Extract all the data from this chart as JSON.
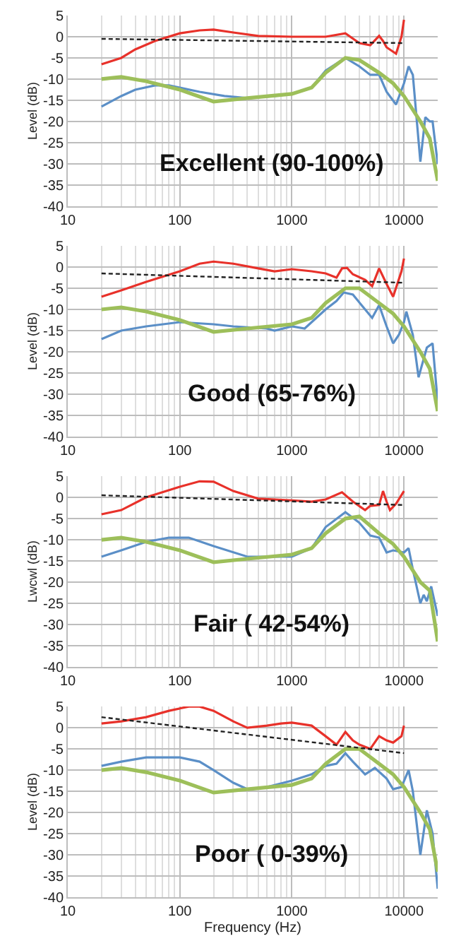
{
  "chart_data": [
    {
      "type": "line",
      "ylabel": "Level (dB)",
      "xlim": [
        10,
        20000
      ],
      "xticks": [
        10,
        100,
        1000,
        10000
      ],
      "ylim": [
        -40,
        5
      ],
      "yticks": [
        -40,
        -35,
        -30,
        -25,
        -20,
        -15,
        -10,
        -5,
        0,
        5
      ],
      "log": "x",
      "grid": true,
      "annotations": [
        "Excellent (90-100%)"
      ],
      "series": [
        {
          "color": "#5b8fc7",
          "x": [
            20,
            30,
            40,
            60,
            80,
            150,
            250,
            400,
            700,
            1000,
            1500,
            2000,
            3000,
            4000,
            5000,
            6000,
            7000,
            8500,
            10000,
            11000,
            12000,
            14000,
            15500,
            17000,
            18000,
            20000
          ],
          "values": [
            -16.5,
            -14,
            -12.5,
            -11.5,
            -11.5,
            -13,
            -14,
            -14.5,
            -14,
            -13.5,
            -12,
            -8,
            -5,
            -7,
            -9,
            -9,
            -13,
            -16,
            -11,
            -7,
            -9,
            -29.5,
            -19,
            -20,
            -20,
            -30
          ]
        },
        {
          "color": "#9dbf5a",
          "x": [
            20,
            30,
            50,
            100,
            200,
            400,
            1000,
            1500,
            2000,
            3000,
            4000,
            6000,
            8000,
            10000,
            14000,
            17000,
            20000
          ],
          "values": [
            -10,
            -9.5,
            -10.5,
            -12.5,
            -15.3,
            -14.5,
            -13.5,
            -12,
            -8.5,
            -5,
            -5.5,
            -8.5,
            -11,
            -14,
            -20,
            -24,
            -34
          ]
        },
        {
          "color": "#e8312a",
          "x": [
            20,
            30,
            40,
            60,
            100,
            150,
            200,
            300,
            500,
            1000,
            2000,
            3000,
            4000,
            5000,
            6000,
            6500,
            7000,
            8500,
            9500,
            10000
          ],
          "values": [
            -6.5,
            -5,
            -3,
            -1,
            0.8,
            1.5,
            1.7,
            1,
            0.2,
            0,
            0,
            0.8,
            -1.5,
            -2,
            0.2,
            -1,
            -2.5,
            -4,
            0,
            4
          ]
        },
        {
          "color": "#222222",
          "line_style": "dashed",
          "x": [
            20,
            10000
          ],
          "values": [
            -0.5,
            -1.5
          ]
        }
      ]
    },
    {
      "type": "line",
      "ylabel": "Level (dB)",
      "xlim": [
        10,
        20000
      ],
      "xticks": [
        10,
        100,
        1000,
        10000
      ],
      "ylim": [
        -40,
        5
      ],
      "yticks": [
        -40,
        -35,
        -30,
        -25,
        -20,
        -15,
        -10,
        -5,
        0,
        5
      ],
      "log": "x",
      "grid": true,
      "annotations": [
        "Good (65-76%)"
      ],
      "series": [
        {
          "color": "#5b8fc7",
          "x": [
            20,
            30,
            50,
            100,
            200,
            300,
            600,
            700,
            1000,
            1300,
            2000,
            2500,
            2900,
            3500,
            4500,
            5200,
            6000,
            7000,
            8000,
            9000,
            10000,
            10500,
            12000,
            13500,
            16000,
            18000,
            20000
          ],
          "values": [
            -17,
            -15,
            -14,
            -13,
            -13.5,
            -14,
            -14.5,
            -15,
            -14,
            -14.5,
            -10,
            -8,
            -6,
            -6.5,
            -10,
            -12,
            -9,
            -14,
            -18,
            -16,
            -13,
            -10.5,
            -16,
            -26,
            -19,
            -18,
            -32
          ]
        },
        {
          "color": "#9dbf5a",
          "x": [
            20,
            30,
            50,
            100,
            200,
            400,
            1000,
            1500,
            2000,
            3000,
            4000,
            6000,
            8000,
            10000,
            14000,
            17000,
            20000
          ],
          "values": [
            -10,
            -9.5,
            -10.5,
            -12.5,
            -15.3,
            -14.5,
            -13.5,
            -12,
            -8.5,
            -5,
            -5,
            -8.5,
            -11,
            -14,
            -20,
            -24,
            -34
          ]
        },
        {
          "color": "#e8312a",
          "x": [
            20,
            30,
            50,
            100,
            150,
            200,
            300,
            500,
            700,
            1000,
            1500,
            2000,
            2500,
            2800,
            3100,
            3500,
            4500,
            5200,
            6000,
            7000,
            8000,
            9500,
            10000
          ],
          "values": [
            -7,
            -5.5,
            -3.5,
            -1,
            0.8,
            1.3,
            0.8,
            -0.3,
            -1,
            -0.5,
            -1,
            -1.5,
            -2.5,
            -0.3,
            -0.2,
            -1.7,
            -3,
            -4.5,
            -0.3,
            -4,
            -7,
            -1,
            2
          ]
        },
        {
          "color": "#222222",
          "line_style": "dashed",
          "x": [
            20,
            10000
          ],
          "values": [
            -1.5,
            -3.7
          ]
        }
      ]
    },
    {
      "type": "line",
      "ylabel": "Lwcwl (dB)",
      "xlim": [
        10,
        20000
      ],
      "xticks": [
        10,
        100,
        1000,
        10000
      ],
      "ylim": [
        -40,
        5
      ],
      "yticks": [
        -40,
        -35,
        -30,
        -25,
        -20,
        -15,
        -10,
        -5,
        0,
        5
      ],
      "log": "x",
      "grid": true,
      "annotations": [
        "Fair ( 42-54%)"
      ],
      "series": [
        {
          "color": "#5b8fc7",
          "x": [
            20,
            30,
            50,
            80,
            120,
            200,
            400,
            700,
            1000,
            1500,
            2000,
            3000,
            4000,
            5000,
            6000,
            7000,
            8000,
            10000,
            11000,
            12000,
            14000,
            15000,
            16000,
            17500,
            20000
          ],
          "values": [
            -14,
            -12.5,
            -10.5,
            -9.5,
            -9.5,
            -11.5,
            -14,
            -14,
            -14,
            -12,
            -7,
            -3.5,
            -6,
            -9,
            -9.5,
            -13,
            -12.5,
            -13,
            -12,
            -17,
            -25,
            -23,
            -24.5,
            -21,
            -28
          ]
        },
        {
          "color": "#9dbf5a",
          "x": [
            20,
            30,
            50,
            100,
            200,
            400,
            1000,
            1500,
            2000,
            3000,
            4000,
            6000,
            8000,
            10000,
            14000,
            17000,
            20000
          ],
          "values": [
            -10,
            -9.5,
            -10.5,
            -12.5,
            -15.3,
            -14.5,
            -13.5,
            -12,
            -8.5,
            -5,
            -4.5,
            -8.5,
            -11,
            -14,
            -20,
            -22,
            -34
          ]
        },
        {
          "color": "#e8312a",
          "x": [
            20,
            30,
            50,
            100,
            150,
            200,
            300,
            500,
            1000,
            1500,
            2000,
            2800,
            3500,
            4500,
            5000,
            6000,
            6500,
            7000,
            7500,
            8500,
            10000
          ],
          "values": [
            -4,
            -3,
            0,
            2.5,
            3.8,
            3.7,
            1.5,
            -0.3,
            -0.7,
            -1,
            -0.5,
            1.2,
            -1,
            -3,
            -2,
            -1.8,
            1.5,
            -1,
            -3,
            -1.5,
            1.5
          ]
        },
        {
          "color": "#222222",
          "line_style": "dashed",
          "x": [
            20,
            10000
          ],
          "values": [
            0.5,
            -1.8
          ]
        }
      ]
    },
    {
      "type": "line",
      "ylabel": "Level (dB)",
      "xlabel": "Frequency (Hz)",
      "xlim": [
        10,
        20000
      ],
      "xticks": [
        10,
        100,
        1000,
        10000
      ],
      "ylim": [
        -40,
        5
      ],
      "yticks": [
        -40,
        -35,
        -30,
        -25,
        -20,
        -15,
        -10,
        -5,
        0,
        5
      ],
      "log": "x",
      "grid": true,
      "annotations": [
        "Poor ( 0-39%)"
      ],
      "series": [
        {
          "color": "#5b8fc7",
          "x": [
            20,
            30,
            50,
            100,
            150,
            200,
            300,
            400,
            600,
            1000,
            1500,
            2000,
            2500,
            3000,
            3500,
            4500,
            5500,
            7000,
            8000,
            9500,
            11000,
            12000,
            14000,
            16000,
            18000,
            20000
          ],
          "values": [
            -9,
            -8,
            -7,
            -7,
            -8,
            -10,
            -13,
            -14.5,
            -14,
            -12.5,
            -11,
            -9,
            -8.5,
            -6,
            -8,
            -11,
            -9.5,
            -12,
            -14.5,
            -14,
            -10,
            -15,
            -30,
            -19.5,
            -25,
            -38
          ]
        },
        {
          "color": "#9dbf5a",
          "x": [
            20,
            30,
            50,
            100,
            200,
            400,
            1000,
            1500,
            2000,
            3000,
            4000,
            6000,
            8000,
            10000,
            14000,
            17000,
            20000
          ],
          "values": [
            -10,
            -9.5,
            -10.5,
            -12.5,
            -15.3,
            -14.5,
            -13.5,
            -12,
            -8.5,
            -5,
            -5,
            -8.5,
            -11,
            -14,
            -20,
            -24,
            -34
          ]
        },
        {
          "color": "#e8312a",
          "x": [
            20,
            30,
            50,
            80,
            120,
            150,
            200,
            300,
            400,
            600,
            800,
            1000,
            1500,
            2000,
            2500,
            3000,
            3500,
            4000,
            5000,
            6000,
            7000,
            8000,
            9500,
            10000
          ],
          "values": [
            1,
            1.5,
            2.5,
            4,
            5,
            5,
            4,
            1.5,
            0,
            0.5,
            1,
            1.2,
            0.5,
            -2,
            -4,
            -1,
            -3,
            -4,
            -5,
            -2,
            -3,
            -3.5,
            -2,
            0.5
          ]
        },
        {
          "color": "#222222",
          "line_style": "dashed",
          "x": [
            20,
            10000
          ],
          "values": [
            2.5,
            -6
          ]
        }
      ]
    }
  ]
}
